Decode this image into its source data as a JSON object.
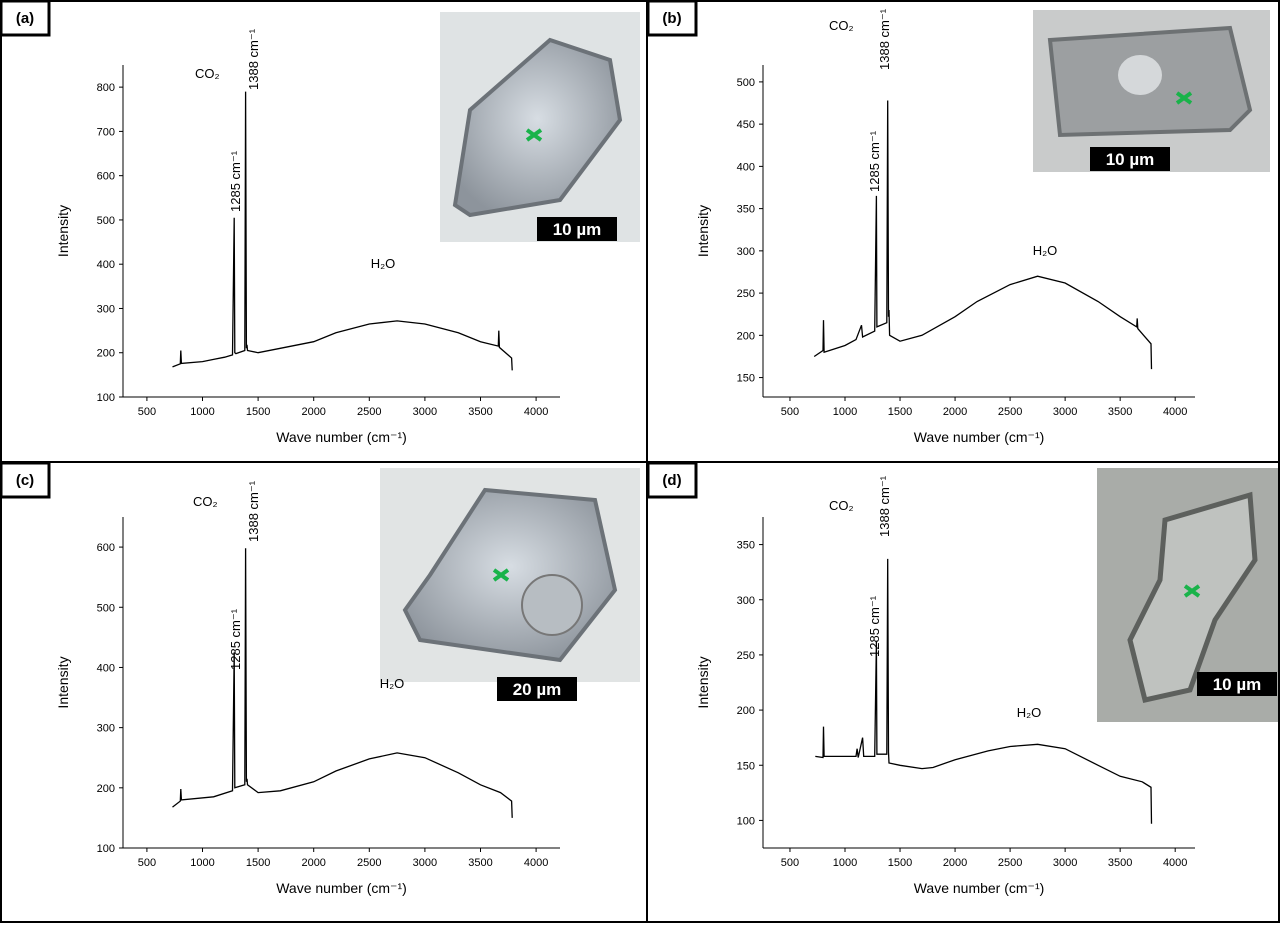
{
  "chart_data": [
    {
      "type": "line",
      "panel_label": "(a)",
      "scale_bar": "10 µm",
      "xlabel": "Wave number (cm⁻¹)",
      "ylabel": "Intensity",
      "annotations": [
        "CO₂",
        "1285 cm⁻¹",
        "1388 cm⁻¹",
        "H₂O"
      ],
      "color": "#000000",
      "xlim": [
        285,
        4215
      ],
      "xticks": [
        500,
        1000,
        1500,
        2000,
        2500,
        3000,
        3500,
        4000
      ],
      "ylim": [
        100,
        850
      ],
      "yticks": [
        100,
        200,
        300,
        400,
        500,
        600,
        700,
        800
      ],
      "x": [
        730,
        800,
        805,
        810,
        1000,
        1100,
        1200,
        1270,
        1285,
        1290,
        1300,
        1380,
        1388,
        1395,
        1400,
        1405,
        1500,
        1700,
        2000,
        2200,
        2500,
        2750,
        3000,
        3300,
        3500,
        3660,
        3665,
        3670,
        3780,
        3785
      ],
      "values": [
        168,
        175,
        205,
        176,
        180,
        185,
        190,
        195,
        505,
        200,
        198,
        205,
        790,
        210,
        218,
        205,
        200,
        210,
        225,
        245,
        265,
        272,
        265,
        245,
        225,
        215,
        250,
        212,
        188,
        160
      ]
    },
    {
      "type": "line",
      "panel_label": "(b)",
      "scale_bar": "10 µm",
      "xlabel": "Wave number (cm⁻¹)",
      "ylabel": "Intensity",
      "annotations": [
        "CO₂",
        "1285 cm⁻¹",
        "1388 cm⁻¹",
        "H₂O"
      ],
      "color": "#000000",
      "xlim": [
        255,
        4180
      ],
      "xticks": [
        500,
        1000,
        1500,
        2000,
        2500,
        3000,
        3500,
        4000
      ],
      "ylim": [
        127,
        520
      ],
      "yticks": [
        150,
        200,
        250,
        300,
        350,
        400,
        450,
        500
      ],
      "x": [
        720,
        800,
        805,
        810,
        1000,
        1100,
        1150,
        1160,
        1270,
        1285,
        1290,
        1380,
        1388,
        1395,
        1400,
        1405,
        1500,
        1700,
        2000,
        2200,
        2500,
        2750,
        3000,
        3300,
        3500,
        3650,
        3655,
        3660,
        3780,
        3785
      ],
      "values": [
        175,
        182,
        218,
        180,
        188,
        195,
        212,
        198,
        205,
        365,
        210,
        215,
        478,
        222,
        230,
        200,
        193,
        200,
        222,
        240,
        260,
        270,
        262,
        240,
        222,
        210,
        220,
        208,
        190,
        160
      ]
    },
    {
      "type": "line",
      "panel_label": "(c)",
      "scale_bar": "20 µm",
      "xlabel": "Wave number (cm⁻¹)",
      "ylabel": "Intensity",
      "annotations": [
        "CO₂",
        "1285 cm⁻¹",
        "1388 cm⁻¹",
        "H₂O"
      ],
      "color": "#000000",
      "xlim": [
        285,
        4215
      ],
      "xticks": [
        500,
        1000,
        1500,
        2000,
        2500,
        3000,
        3500,
        4000
      ],
      "ylim": [
        100,
        650
      ],
      "yticks": [
        100,
        200,
        300,
        400,
        500,
        600
      ],
      "x": [
        730,
        800,
        805,
        810,
        1100,
        1270,
        1285,
        1290,
        1380,
        1388,
        1395,
        1400,
        1405,
        1500,
        1700,
        2000,
        2200,
        2500,
        2750,
        3000,
        3300,
        3500,
        3680,
        3780,
        3785
      ],
      "values": [
        168,
        178,
        198,
        180,
        185,
        195,
        425,
        200,
        205,
        598,
        210,
        215,
        205,
        192,
        195,
        210,
        228,
        248,
        258,
        250,
        225,
        205,
        192,
        178,
        150
      ]
    },
    {
      "type": "line",
      "panel_label": "(d)",
      "scale_bar": "10 µm",
      "xlabel": "Wave number (cm⁻¹)",
      "ylabel": "Intensity",
      "annotations": [
        "CO₂",
        "1285 cm⁻¹",
        "1388 cm⁻¹",
        "H₂O"
      ],
      "color": "#000000",
      "xlim": [
        255,
        4180
      ],
      "xticks": [
        500,
        1000,
        1500,
        2000,
        2500,
        3000,
        3500,
        4000
      ],
      "ylim": [
        75,
        375
      ],
      "yticks": [
        100,
        150,
        200,
        250,
        300,
        350
      ],
      "x": [
        730,
        800,
        805,
        810,
        1100,
        1110,
        1120,
        1160,
        1170,
        1270,
        1285,
        1290,
        1380,
        1388,
        1395,
        1400,
        1500,
        1700,
        1800,
        2000,
        2300,
        2500,
        2750,
        3000,
        3300,
        3500,
        3700,
        3780,
        3785
      ],
      "values": [
        158,
        157,
        185,
        158,
        158,
        165,
        157,
        175,
        158,
        158,
        262,
        160,
        160,
        337,
        162,
        152,
        150,
        147,
        148,
        155,
        163,
        167,
        169,
        165,
        150,
        140,
        135,
        130,
        97
      ]
    }
  ]
}
